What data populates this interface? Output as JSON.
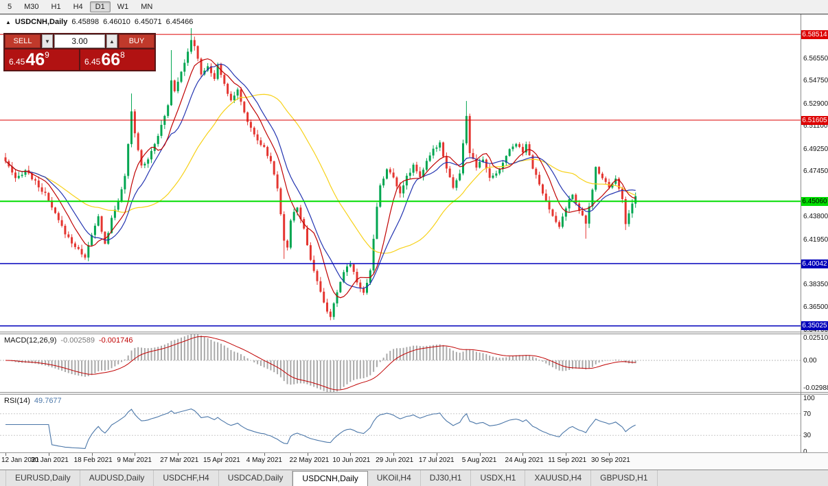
{
  "toolbar": {
    "timeframes": [
      {
        "label": "5",
        "active": false
      },
      {
        "label": "M30",
        "active": false
      },
      {
        "label": "H1",
        "active": false
      },
      {
        "label": "H4",
        "active": false
      },
      {
        "label": "D1",
        "active": true
      },
      {
        "label": "W1",
        "active": false
      },
      {
        "label": "MN",
        "active": false
      }
    ]
  },
  "header": {
    "icon": "▲",
    "title": "USDCNH,Daily",
    "open": "6.45898",
    "high": "6.46010",
    "low": "6.45071",
    "close": "6.45466"
  },
  "trade_widget": {
    "sell_label": "SELL",
    "buy_label": "BUY",
    "volume": "3.00",
    "dropdown_icon": "▼",
    "up_icon": "▲",
    "sell_price": {
      "small": "6.45",
      "big": "46",
      "sup": "9"
    },
    "buy_price": {
      "small": "6.45",
      "big": "66",
      "sup": "8"
    }
  },
  "chart_data": {
    "type": "candlestick",
    "symbol": "USDCNH",
    "timeframe": "Daily",
    "ohlc": {
      "open": 6.45898,
      "high": 6.4601,
      "low": 6.45071,
      "close": 6.45466
    },
    "candle_count": 191,
    "colors": {
      "up": "#00a550",
      "down": "#e43530",
      "background": "#ffffff"
    },
    "price_path_anchors": [
      [
        0,
        6.483
      ],
      [
        3,
        6.468
      ],
      [
        6,
        6.476
      ],
      [
        9,
        6.466
      ],
      [
        12,
        6.456
      ],
      [
        15,
        6.44
      ],
      [
        18,
        6.425
      ],
      [
        21,
        6.414
      ],
      [
        24,
        6.406
      ],
      [
        26,
        6.423
      ],
      [
        28,
        6.438
      ],
      [
        30,
        6.416
      ],
      [
        32,
        6.436
      ],
      [
        34,
        6.452
      ],
      [
        36,
        6.47
      ],
      [
        38,
        6.522
      ],
      [
        39,
        6.505
      ],
      [
        41,
        6.479
      ],
      [
        43,
        6.485
      ],
      [
        45,
        6.498
      ],
      [
        47,
        6.511
      ],
      [
        49,
        6.528
      ],
      [
        50,
        6.549
      ],
      [
        51,
        6.54
      ],
      [
        53,
        6.556
      ],
      [
        55,
        6.57
      ],
      [
        56,
        6.58
      ],
      [
        57,
        6.576
      ],
      [
        58,
        6.566
      ],
      [
        59,
        6.552
      ],
      [
        61,
        6.56
      ],
      [
        63,
        6.548
      ],
      [
        64,
        6.562
      ],
      [
        66,
        6.544
      ],
      [
        68,
        6.532
      ],
      [
        70,
        6.54
      ],
      [
        72,
        6.522
      ],
      [
        74,
        6.51
      ],
      [
        76,
        6.5
      ],
      [
        78,
        6.494
      ],
      [
        80,
        6.482
      ],
      [
        82,
        6.462
      ],
      [
        84,
        6.42
      ],
      [
        85,
        6.412
      ],
      [
        86,
        6.436
      ],
      [
        88,
        6.446
      ],
      [
        90,
        6.428
      ],
      [
        92,
        6.404
      ],
      [
        94,
        6.386
      ],
      [
        96,
        6.368
      ],
      [
        98,
        6.358
      ],
      [
        100,
        6.376
      ],
      [
        102,
        6.394
      ],
      [
        104,
        6.401
      ],
      [
        106,
        6.386
      ],
      [
        108,
        6.376
      ],
      [
        110,
        6.396
      ],
      [
        111,
        6.42
      ],
      [
        112,
        6.446
      ],
      [
        113,
        6.464
      ],
      [
        115,
        6.476
      ],
      [
        117,
        6.47
      ],
      [
        119,
        6.458
      ],
      [
        121,
        6.47
      ],
      [
        123,
        6.48
      ],
      [
        125,
        6.471
      ],
      [
        127,
        6.482
      ],
      [
        129,
        6.492
      ],
      [
        131,
        6.498
      ],
      [
        133,
        6.478
      ],
      [
        135,
        6.462
      ],
      [
        137,
        6.473
      ],
      [
        139,
        6.52
      ],
      [
        140,
        6.49
      ],
      [
        142,
        6.478
      ],
      [
        144,
        6.484
      ],
      [
        146,
        6.47
      ],
      [
        148,
        6.472
      ],
      [
        150,
        6.482
      ],
      [
        152,
        6.492
      ],
      [
        154,
        6.498
      ],
      [
        156,
        6.49
      ],
      [
        157,
        6.498
      ],
      [
        159,
        6.478
      ],
      [
        161,
        6.464
      ],
      [
        163,
        6.45
      ],
      [
        165,
        6.438
      ],
      [
        167,
        6.43
      ],
      [
        169,
        6.446
      ],
      [
        171,
        6.456
      ],
      [
        173,
        6.444
      ],
      [
        175,
        6.432
      ],
      [
        177,
        6.46
      ],
      [
        178,
        6.478
      ],
      [
        180,
        6.47
      ],
      [
        182,
        6.462
      ],
      [
        184,
        6.47
      ],
      [
        186,
        6.452
      ],
      [
        187,
        6.432
      ],
      [
        188,
        6.442
      ],
      [
        190,
        6.4547
      ]
    ],
    "spikes": [
      {
        "i": 24,
        "low": 6.4035
      },
      {
        "i": 38,
        "high": 6.5375
      },
      {
        "i": 50,
        "high": 6.5725
      },
      {
        "i": 56,
        "high": 6.5902
      },
      {
        "i": 84,
        "low": 6.4042
      },
      {
        "i": 98,
        "low": 6.3548
      },
      {
        "i": 139,
        "high": 6.5315
      },
      {
        "i": 175,
        "low": 6.4205
      },
      {
        "i": 187,
        "low": 6.4275
      }
    ],
    "levels": [
      {
        "label": "6.58514",
        "value": 6.58514,
        "color": "#dd0000",
        "badge_text": "#ffffff",
        "width": 1
      },
      {
        "label": "6.51605",
        "value": 6.51605,
        "color": "#dd0000",
        "badge_text": "#ffffff",
        "width": 1
      },
      {
        "label": "6.45060",
        "value": 6.4506,
        "color": "#00dd00",
        "badge_text": "#000000",
        "width": 2
      },
      {
        "label": "6.40042",
        "value": 6.40042,
        "color": "#0000bb",
        "badge_text": "#ffffff",
        "width": 1.5
      },
      {
        "label": "6.35025",
        "value": 6.35025,
        "color": "#0000bb",
        "badge_text": "#ffffff",
        "width": 1.5
      }
    ],
    "moving_averages": [
      {
        "name": "slow",
        "period": 34,
        "color": "#f7d117"
      },
      {
        "name": "medium",
        "period": 13,
        "color": "#2233b0"
      },
      {
        "name": "fast",
        "period": 8,
        "color": "#c00000"
      }
    ],
    "y_axis": {
      "ticks": [
        "6.56550",
        "6.54750",
        "6.52900",
        "6.51100",
        "6.49250",
        "6.47450",
        "6.43800",
        "6.41950",
        "6.38350",
        "6.36500",
        "6.34700"
      ]
    },
    "x_axis": {
      "date_labels": [
        "12 Jan 2021",
        "30 Jan 2021",
        "18 Feb 2021",
        "9 Mar 2021",
        "27 Mar 2021",
        "15 Apr 2021",
        "4 May 2021",
        "22 May 2021",
        "10 Jun 2021",
        "29 Jun 2021",
        "17 Jul 2021",
        "5 Aug 2021",
        "24 Aug 2021",
        "11 Sep 2021",
        "30 Sep 2021"
      ]
    },
    "macd": {
      "label": "MACD(12,26,9)",
      "value_main": "-0.002589",
      "value_signal": "-0.001746",
      "params": {
        "fast": 12,
        "slow": 26,
        "signal": 9
      },
      "axis_labels": [
        "0.02510",
        "0.00",
        "-0.02988"
      ],
      "histogram_color": "#a9a9a9",
      "signal_color": "#c00000"
    },
    "rsi": {
      "label": "RSI(14)",
      "value": "49.7677",
      "period": 14,
      "axis_labels": [
        "100",
        "70",
        "30",
        "0"
      ],
      "levels": [
        70,
        30
      ],
      "line_color": "#4a76a8"
    }
  },
  "tabs": {
    "items": [
      {
        "label": "EURUSD,Daily",
        "active": false
      },
      {
        "label": "AUDUSD,Daily",
        "active": false
      },
      {
        "label": "USDCHF,H4",
        "active": false
      },
      {
        "label": "USDCAD,Daily",
        "active": false
      },
      {
        "label": "USDCNH,Daily",
        "active": true
      },
      {
        "label": "UKOil,H4",
        "active": false
      },
      {
        "label": "DJ30,H1",
        "active": false
      },
      {
        "label": "USDX,H1",
        "active": false
      },
      {
        "label": "XAUUSD,H4",
        "active": false
      },
      {
        "label": "GBPUSD,H1",
        "active": false
      }
    ]
  }
}
